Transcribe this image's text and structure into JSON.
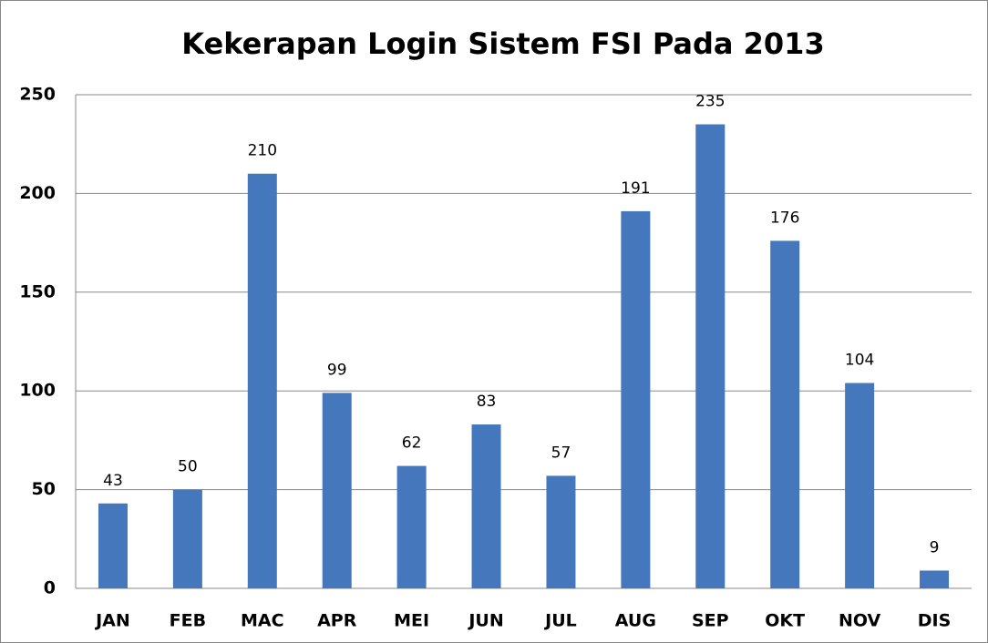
{
  "chart_data": {
    "type": "bar",
    "title": "Kekerapan Login Sistem FSI Pada 2013",
    "categories": [
      "JAN",
      "FEB",
      "MAC",
      "APR",
      "MEI",
      "JUN",
      "JUL",
      "AUG",
      "SEP",
      "OKT",
      "NOV",
      "DIS"
    ],
    "values": [
      43,
      50,
      210,
      99,
      62,
      83,
      57,
      191,
      235,
      176,
      104,
      9
    ],
    "color": "#4477bb",
    "ylim": [
      0,
      250
    ],
    "yticks": [
      0,
      50,
      100,
      150,
      200,
      250
    ],
    "grid": true
  }
}
